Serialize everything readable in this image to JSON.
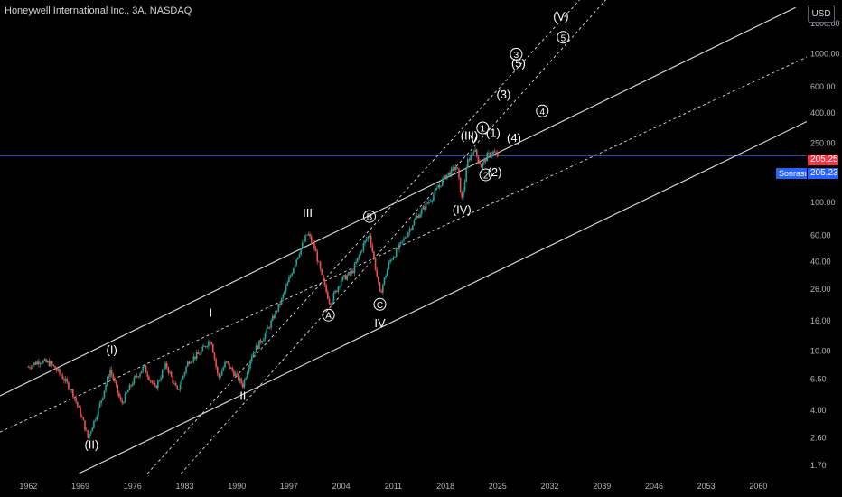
{
  "header": {
    "symbol_title": "Honeywell International Inc., 3A, NASDAQ",
    "currency_button": "USD"
  },
  "price_tags": {
    "last_price": "205.25",
    "after_hours_label": "Sonrası",
    "after_hours_price": "205.23"
  },
  "colors": {
    "background": "#000000",
    "up_candle": "#26a69a",
    "down_candle": "#ef5350",
    "channel_lines": "#e0e0e0",
    "price_line": "#2962ff",
    "last_price_tag": "#f23645",
    "after_hours_tag": "#2962ff"
  },
  "chart_data": {
    "type": "candlestick",
    "y_scale": "log",
    "x_ticks": [
      "1962",
      "1969",
      "1976",
      "1983",
      "1990",
      "1997",
      "2004",
      "2011",
      "2018",
      "2025",
      "2032",
      "2039",
      "2046",
      "2053",
      "2060"
    ],
    "y_ticks": [
      "1600.00",
      "1000.00",
      "600.00",
      "400.00",
      "250.00",
      "150.00",
      "100.00",
      "60.00",
      "40.00",
      "26.00",
      "16.00",
      "10.00",
      "6.50",
      "4.00",
      "2.60",
      "1.70"
    ],
    "ylim": [
      1.5,
      2300
    ],
    "xlim": [
      1958.2,
      2066.5
    ],
    "last_price": 205.25,
    "price_path": [
      [
        1962.0,
        7.8
      ],
      [
        1963.5,
        8.6
      ],
      [
        1965.0,
        8.2
      ],
      [
        1966.5,
        6.8
      ],
      [
        1968.0,
        5.2
      ],
      [
        1969.5,
        3.2
      ],
      [
        1970.0,
        2.6
      ],
      [
        1971.5,
        4.2
      ],
      [
        1973.0,
        7.5
      ],
      [
        1974.5,
        4.4
      ],
      [
        1976.0,
        6.2
      ],
      [
        1977.5,
        7.8
      ],
      [
        1979.0,
        5.6
      ],
      [
        1980.5,
        8.1
      ],
      [
        1982.0,
        5.3
      ],
      [
        1983.5,
        8.6
      ],
      [
        1985.0,
        9.6
      ],
      [
        1986.5,
        12.2
      ],
      [
        1987.5,
        6.5
      ],
      [
        1988.5,
        8.4
      ],
      [
        1990.0,
        6.7
      ],
      [
        1990.8,
        5.9
      ],
      [
        1992.0,
        9.4
      ],
      [
        1994.0,
        13.5
      ],
      [
        1996.0,
        22.0
      ],
      [
        1998.0,
        42.0
      ],
      [
        1999.5,
        62.0
      ],
      [
        2000.5,
        48.0
      ],
      [
        2001.5,
        30.0
      ],
      [
        2002.5,
        21.0
      ],
      [
        2004.0,
        30.0
      ],
      [
        2005.5,
        34.0
      ],
      [
        2007.0,
        52.0
      ],
      [
        2007.8,
        61.0
      ],
      [
        2008.8,
        32.0
      ],
      [
        2009.2,
        24.0
      ],
      [
        2010.5,
        40.0
      ],
      [
        2012.0,
        52.0
      ],
      [
        2014.0,
        78.0
      ],
      [
        2016.0,
        105.0
      ],
      [
        2018.0,
        150.0
      ],
      [
        2019.5,
        175.0
      ],
      [
        2020.2,
        105.0
      ],
      [
        2021.0,
        190.0
      ],
      [
        2021.8,
        230.0
      ],
      [
        2022.8,
        175.0
      ],
      [
        2023.6,
        205.0
      ],
      [
        2024.4,
        218.0
      ],
      [
        2025.0,
        205.25
      ]
    ],
    "wave_labels": [
      {
        "label": "(I)",
        "x": 1973.2,
        "y": 9.6,
        "circled": false
      },
      {
        "label": "(II)",
        "x": 1970.5,
        "y": 2.2,
        "circled": false
      },
      {
        "label": "I",
        "x": 1986.5,
        "y": 17.0,
        "circled": false
      },
      {
        "label": "II",
        "x": 1990.8,
        "y": 4.7,
        "circled": false
      },
      {
        "label": "III",
        "x": 1999.5,
        "y": 80.0,
        "circled": false
      },
      {
        "label": "A",
        "x": 2002.3,
        "y": 16.5,
        "circled": true
      },
      {
        "label": "B",
        "x": 2007.8,
        "y": 76.0,
        "circled": true
      },
      {
        "label": "C",
        "x": 2009.2,
        "y": 19.5,
        "circled": true
      },
      {
        "label": "IV",
        "x": 2009.2,
        "y": 14.5,
        "circled": false
      },
      {
        "label": "(IV)",
        "x": 2020.2,
        "y": 84.0,
        "circled": false
      },
      {
        "label": "(III)",
        "x": 2021.2,
        "y": 265.0,
        "circled": false
      },
      {
        "label": "V",
        "x": 2021.8,
        "y": 250.0,
        "circled": false
      },
      {
        "label": "1",
        "x": 2023.0,
        "y": 300.0,
        "circled": true
      },
      {
        "label": "(1)",
        "x": 2024.4,
        "y": 275.0,
        "circled": false
      },
      {
        "label": "2",
        "x": 2023.4,
        "y": 145.0,
        "circled": true
      },
      {
        "label": "(2)",
        "x": 2024.6,
        "y": 150.0,
        "circled": false
      },
      {
        "label": "(3)",
        "x": 2025.8,
        "y": 500.0,
        "circled": false
      },
      {
        "label": "(4)",
        "x": 2027.2,
        "y": 255.0,
        "circled": false
      },
      {
        "label": "3",
        "x": 2027.5,
        "y": 940.0,
        "circled": true
      },
      {
        "label": "(5)",
        "x": 2027.8,
        "y": 810.0,
        "circled": false
      },
      {
        "label": "4",
        "x": 2031.0,
        "y": 390.0,
        "circled": true
      },
      {
        "label": "(V)",
        "x": 2033.5,
        "y": 1680.0,
        "circled": false
      },
      {
        "label": "5",
        "x": 2033.8,
        "y": 1220.0,
        "circled": true
      }
    ],
    "trend_lines": [
      {
        "style": "solid",
        "from": [
          1958.2,
          5.0
        ],
        "to": [
          2065.0,
          2050.0
        ]
      },
      {
        "style": "solid",
        "from": [
          1968.8,
          1.5
        ],
        "to": [
          2066.5,
          350.0
        ]
      },
      {
        "style": "dashed",
        "from": [
          1958.2,
          2.85
        ],
        "to": [
          2066.5,
          950.0
        ]
      },
      {
        "style": "dashed",
        "from": [
          1982.5,
          1.5
        ],
        "to": [
          2039.5,
          2300.0
        ]
      },
      {
        "style": "dashed",
        "from": [
          1978.0,
          1.5
        ],
        "to": [
          2036.0,
          2300.0
        ]
      }
    ]
  }
}
